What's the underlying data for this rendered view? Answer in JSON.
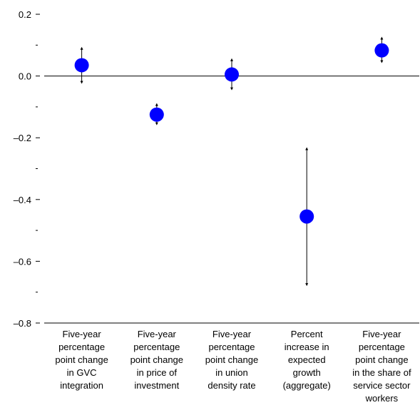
{
  "chart_data": {
    "type": "errorbar",
    "categories": [
      [
        "Five-year",
        "percentage",
        "point change",
        "in GVC",
        "integration"
      ],
      [
        "Five-year",
        "percentage",
        "point change",
        "in price of",
        "investment"
      ],
      [
        "Five-year",
        "percentage",
        "point change",
        "in union",
        "density rate"
      ],
      [
        "Percent",
        "increase in",
        "expected",
        "growth",
        "(aggregate)"
      ],
      [
        "Five-year",
        "percentage",
        "point change",
        "in the share of",
        "service sector",
        "workers"
      ]
    ],
    "values": [
      0.035,
      -0.125,
      0.005,
      -0.455,
      0.083
    ],
    "lower": [
      -0.023,
      -0.157,
      -0.044,
      -0.678,
      0.044
    ],
    "upper": [
      0.092,
      -0.09,
      0.055,
      -0.233,
      0.125
    ],
    "color": "#0000ff",
    "ylim": [
      -0.8,
      0.2
    ],
    "yticks": [
      0.2,
      {
        "value": 0,
        "label": "0.0"
      },
      {
        "value": -0.2,
        "label": "–0.2"
      },
      {
        "value": -0.4,
        "label": "–0.4"
      },
      {
        "value": -0.6,
        "label": "–0.6"
      },
      {
        "value": -0.8,
        "label": "–0.8"
      }
    ],
    "yminorticks": [
      0.1,
      -0.1,
      -0.3,
      -0.5,
      -0.7
    ]
  }
}
